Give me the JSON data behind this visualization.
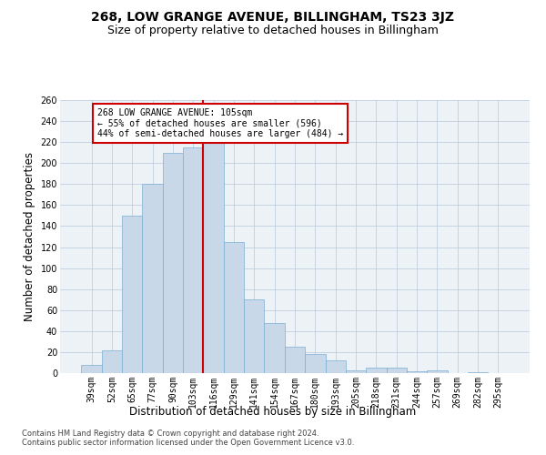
{
  "title": "268, LOW GRANGE AVENUE, BILLINGHAM, TS23 3JZ",
  "subtitle": "Size of property relative to detached houses in Billingham",
  "xlabel": "Distribution of detached houses by size in Billingham",
  "ylabel": "Number of detached properties",
  "categories": [
    "39sqm",
    "52sqm",
    "65sqm",
    "77sqm",
    "90sqm",
    "103sqm",
    "116sqm",
    "129sqm",
    "141sqm",
    "154sqm",
    "167sqm",
    "180sqm",
    "193sqm",
    "205sqm",
    "218sqm",
    "231sqm",
    "244sqm",
    "257sqm",
    "269sqm",
    "282sqm",
    "295sqm"
  ],
  "values": [
    8,
    22,
    150,
    180,
    210,
    215,
    220,
    125,
    70,
    48,
    25,
    18,
    12,
    3,
    5,
    5,
    2,
    3,
    0,
    1,
    0
  ],
  "bar_color": "#c8d8e8",
  "bar_edge_color": "#7bafd4",
  "vline_color": "#cc0000",
  "annotation_text": "268 LOW GRANGE AVENUE: 105sqm\n← 55% of detached houses are smaller (596)\n44% of semi-detached houses are larger (484) →",
  "annotation_box_color": "#ffffff",
  "annotation_box_edge": "#cc0000",
  "ylim": [
    0,
    260
  ],
  "yticks": [
    0,
    20,
    40,
    60,
    80,
    100,
    120,
    140,
    160,
    180,
    200,
    220,
    240,
    260
  ],
  "bg_color": "#edf2f7",
  "footer1": "Contains HM Land Registry data © Crown copyright and database right 2024.",
  "footer2": "Contains public sector information licensed under the Open Government Licence v3.0.",
  "title_fontsize": 10,
  "subtitle_fontsize": 9,
  "tick_fontsize": 7,
  "label_fontsize": 8.5,
  "footer_fontsize": 6,
  "vline_x": 5.5
}
